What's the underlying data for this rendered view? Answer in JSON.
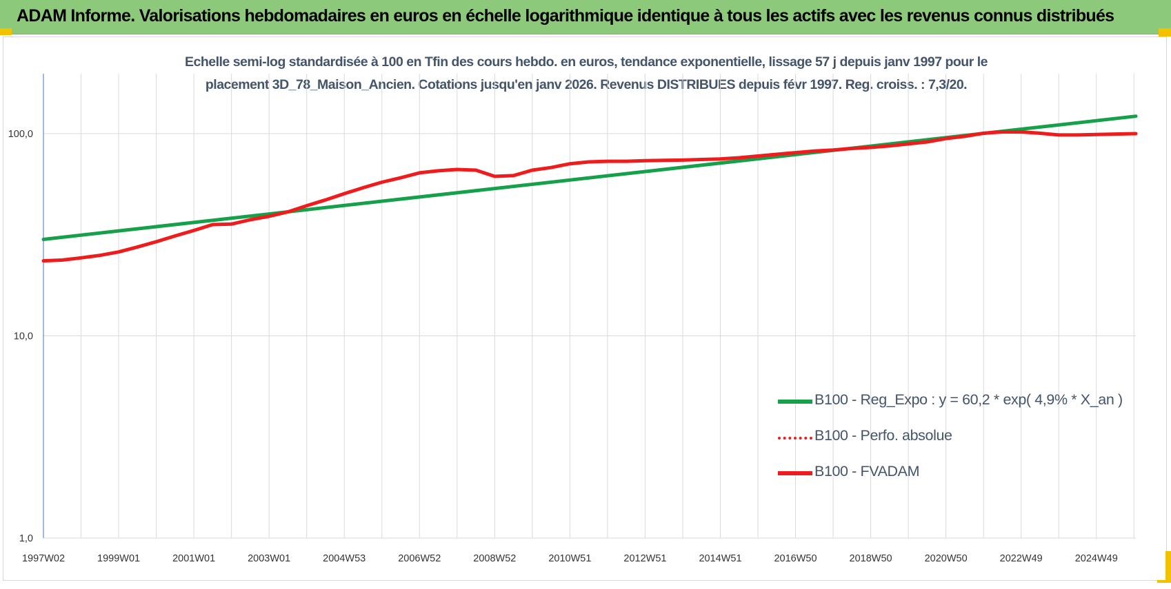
{
  "banner": {
    "title": "ADAM Informe. Valorisations hebdomadaires en euros en échelle logarithmique identique à tous les actifs avec les revenus connus distribués"
  },
  "colors": {
    "banner_bg": "#8cc97a",
    "regression_line": "#16a04a",
    "fvadam_line": "#ee1c1c",
    "perfo_line": "#ee1c1c",
    "subtitle_text": "#44546a",
    "grid": "#d9d9d9",
    "y_axis_line": "#4472c4",
    "corner_markers": "#f2c200"
  },
  "chart_data": {
    "type": "line",
    "subtitle_lines": [
      "Echelle semi-log standardisée à 100 en Tfin des cours hebdo. en euros, tendance exponentielle, lissage 57 j depuis janv 1997 pour le",
      "placement 3D_78_Maison_Ancien. Cotations jusqu'en janv 2026. Revenus DISTRIBUES depuis févr 1997. Reg. croiss. : 7,3/20."
    ],
    "y_scale": "log",
    "ylim": [
      1,
      200
    ],
    "y_tick_labels": [
      "100,0",
      "10,0",
      "1,0"
    ],
    "y_tick_values": [
      100,
      10,
      1
    ],
    "x_tick_labels": [
      "1997W02",
      "1999W01",
      "2001W01",
      "2003W01",
      "2004W53",
      "2006W52",
      "2008W52",
      "2010W51",
      "2012W51",
      "2014W51",
      "2016W50",
      "2018W50",
      "2020W50",
      "2022W49",
      "2024W49"
    ],
    "x_tick_years": [
      1997.0,
      1999.0,
      2001.0,
      2003.0,
      2005.0,
      2007.0,
      2009.0,
      2011.0,
      2013.0,
      2015.0,
      2017.0,
      2019.0,
      2021.0,
      2023.0,
      2025.0
    ],
    "xlim": [
      1997.0,
      2026.05
    ],
    "grid": "vertical and horizontal gridlines",
    "legend_position": "bottom-right",
    "series": [
      {
        "name": "B100 - Reg_Expo : y = 60,2 * exp( 4,9% *  X_an )",
        "style": "solid",
        "color": "#16a04a",
        "x": [
          1997.0,
          2026.05
        ],
        "y": [
          30.0,
          122.0
        ]
      },
      {
        "name": "B100 - Perfo. absolue",
        "style": "dotted",
        "color": "#ee1c1c",
        "x": [],
        "y": []
      },
      {
        "name": "B100 - FVADAM",
        "style": "solid",
        "color": "#ee1c1c",
        "x": [
          1997.0,
          1997.5,
          1998.0,
          1998.5,
          1999.0,
          1999.5,
          2000.0,
          2000.5,
          2001.0,
          2001.5,
          2002.0,
          2002.5,
          2003.0,
          2003.5,
          2004.0,
          2004.5,
          2005.0,
          2005.5,
          2006.0,
          2006.5,
          2007.0,
          2007.5,
          2008.0,
          2008.5,
          2009.0,
          2009.5,
          2010.0,
          2010.5,
          2011.0,
          2011.5,
          2012.0,
          2012.5,
          2013.0,
          2013.5,
          2014.0,
          2014.5,
          2015.0,
          2015.5,
          2016.0,
          2016.5,
          2017.0,
          2017.5,
          2018.0,
          2018.5,
          2019.0,
          2019.5,
          2020.0,
          2020.5,
          2021.0,
          2021.5,
          2022.0,
          2022.5,
          2023.0,
          2023.5,
          2024.0,
          2024.5,
          2025.0,
          2025.5,
          2026.05
        ],
        "y": [
          23.5,
          23.7,
          24.3,
          25.0,
          26.0,
          27.5,
          29.2,
          31.2,
          33.2,
          35.5,
          35.7,
          37.5,
          39.0,
          41.0,
          44.0,
          47.0,
          50.5,
          54.0,
          57.5,
          60.5,
          64.0,
          65.5,
          66.5,
          66.0,
          61.5,
          62.0,
          66.0,
          68.0,
          71.0,
          72.5,
          73.0,
          73.0,
          73.5,
          73.8,
          74.0,
          74.5,
          75.0,
          76.0,
          77.5,
          79.0,
          80.5,
          82.0,
          83.0,
          84.5,
          85.5,
          87.0,
          89.0,
          91.0,
          94.5,
          97.0,
          100.5,
          102.0,
          102.0,
          100.5,
          98.5,
          98.5,
          99.0,
          99.5,
          100.0
        ]
      }
    ]
  }
}
